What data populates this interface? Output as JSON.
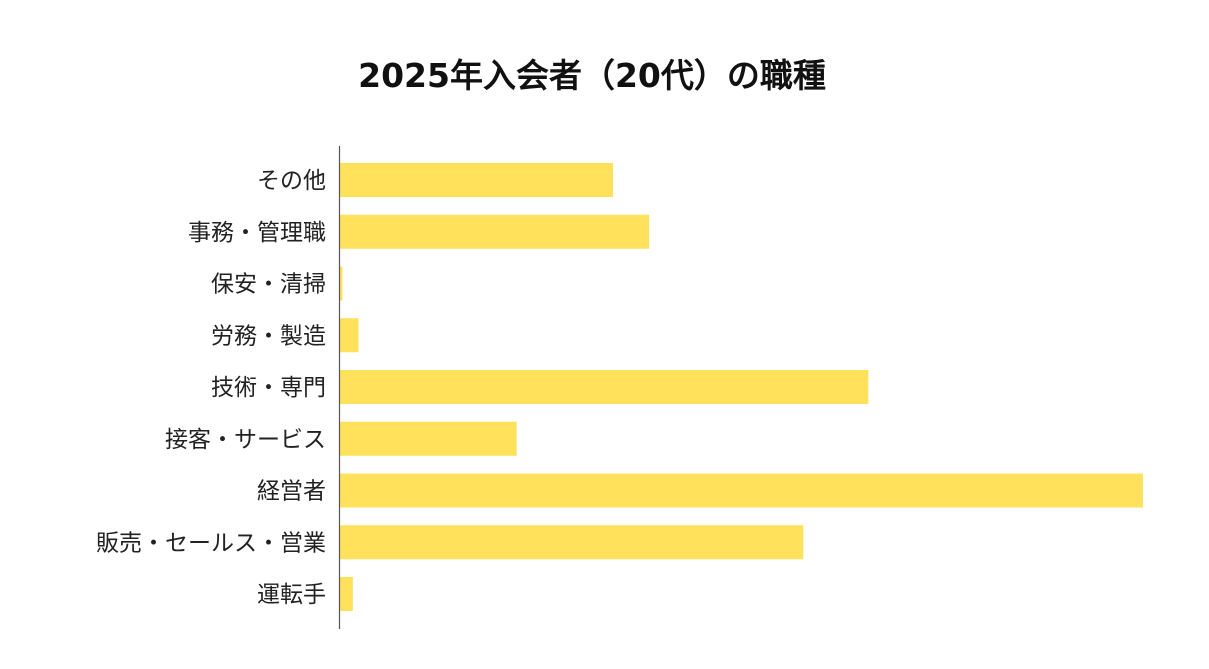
{
  "chart_data": {
    "type": "bar",
    "orientation": "horizontal",
    "title": "2025年入会者（20代）の職種",
    "xlabel": "",
    "ylabel": "",
    "categories": [
      "その他",
      "事務・管理職",
      "保安・清掃",
      "労務・製造",
      "技術・専門",
      "接客・サービス",
      "経営者",
      "販売・セールス・営業",
      "運転手"
    ],
    "values": [
      34,
      38.5,
      0.3,
      2.3,
      65.8,
      22,
      100,
      57.7,
      1.6
    ],
    "value_scale": "relative (longest bar = 100); no axis ticks are printed",
    "xlim": [
      0,
      100
    ],
    "grid": false,
    "legend": "none",
    "colors": {
      "bar": "#FFE15C",
      "axis": "#555555",
      "text": "#222222"
    }
  }
}
